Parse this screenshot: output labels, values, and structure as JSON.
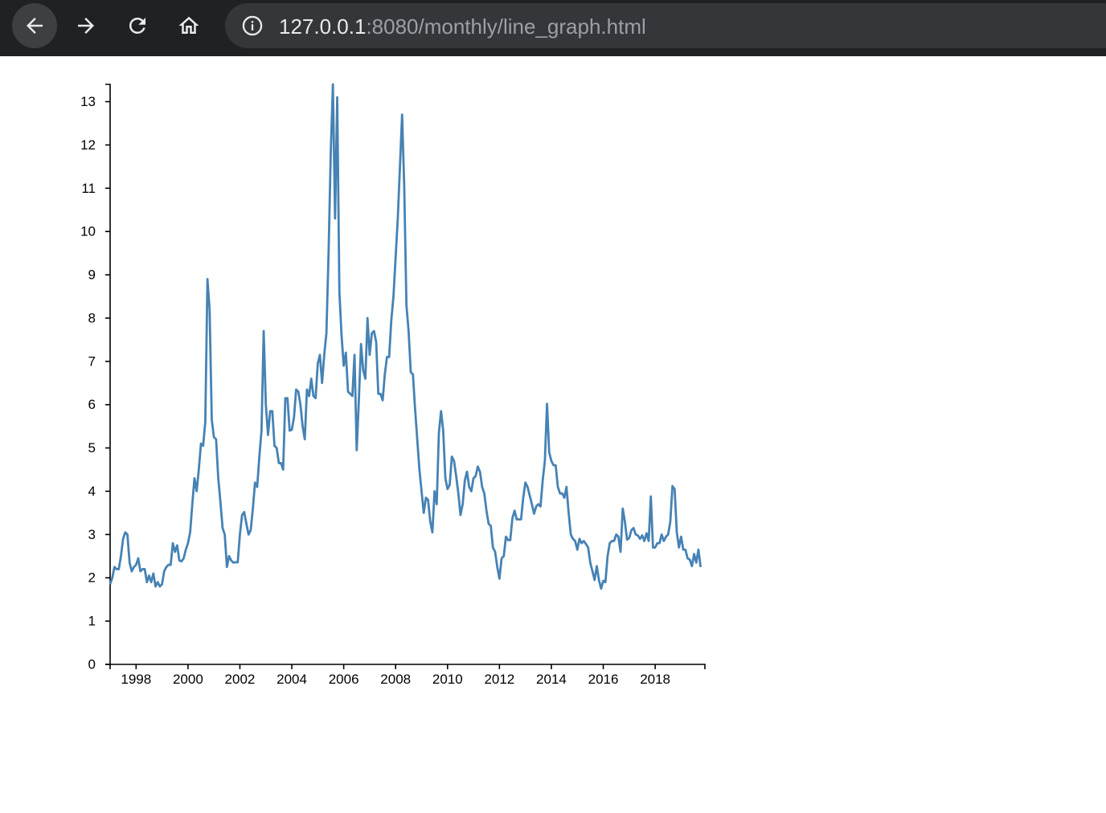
{
  "browser": {
    "url_host": "127.0.0.1",
    "url_path": ":8080/monthly/line_graph.html",
    "icons": [
      "back-arrow-icon",
      "forward-arrow-icon",
      "reload-icon",
      "home-icon",
      "info-icon"
    ]
  },
  "chart_data": {
    "type": "line",
    "title": "",
    "xlabel": "",
    "ylabel": "",
    "xlim": [
      "1997-01",
      "2019-12"
    ],
    "ylim": [
      0,
      13.4
    ],
    "x_ticks": [
      "1998",
      "2000",
      "2002",
      "2004",
      "2006",
      "2008",
      "2010",
      "2012",
      "2014",
      "2016",
      "2018"
    ],
    "y_ticks": [
      "0",
      "1",
      "2",
      "3",
      "4",
      "5",
      "6",
      "7",
      "8",
      "9",
      "10",
      "11",
      "12",
      "13"
    ],
    "grid": false,
    "line_color": "#4682b4",
    "series": [
      {
        "start": "1997-01",
        "frequency": "monthly",
        "values": [
          1.85,
          2.0,
          2.25,
          2.2,
          2.2,
          2.5,
          2.9,
          3.05,
          3.0,
          2.35,
          2.15,
          2.25,
          2.3,
          2.45,
          2.15,
          2.2,
          2.2,
          1.9,
          2.05,
          1.9,
          2.1,
          1.8,
          1.9,
          1.8,
          1.85,
          2.15,
          2.25,
          2.3,
          2.3,
          2.8,
          2.6,
          2.75,
          2.4,
          2.38,
          2.45,
          2.65,
          2.8,
          3.05,
          3.7,
          4.3,
          4.0,
          4.5,
          5.1,
          5.05,
          5.6,
          8.9,
          8.2,
          5.65,
          5.25,
          5.2,
          4.3,
          3.75,
          3.15,
          3.0,
          2.25,
          2.5,
          2.4,
          2.35,
          2.36,
          2.36,
          3.0,
          3.45,
          3.52,
          3.25,
          3.0,
          3.1,
          3.6,
          4.2,
          4.1,
          4.8,
          5.4,
          7.7,
          6.0,
          5.3,
          5.85,
          5.85,
          5.05,
          5.0,
          4.65,
          4.65,
          4.5,
          6.15,
          6.15,
          5.4,
          5.42,
          5.7,
          6.35,
          6.3,
          6.0,
          5.5,
          5.2,
          6.35,
          6.2,
          6.6,
          6.2,
          6.15,
          6.95,
          7.15,
          6.5,
          7.15,
          7.65,
          9.5,
          11.8,
          13.4,
          10.3,
          13.1,
          8.6,
          7.6,
          6.9,
          7.2,
          6.3,
          6.25,
          6.2,
          7.15,
          4.95,
          6.1,
          7.4,
          6.8,
          6.6,
          8.0,
          7.15,
          7.65,
          7.7,
          7.45,
          6.25,
          6.25,
          6.1,
          6.7,
          7.1,
          7.1,
          7.95,
          8.5,
          9.4,
          10.3,
          11.5,
          12.7,
          11.0,
          8.3,
          7.7,
          6.75,
          6.7,
          5.9,
          5.2,
          4.5,
          4.0,
          3.5,
          3.85,
          3.8,
          3.3,
          3.05,
          4.0,
          3.7,
          5.35,
          5.85,
          5.4,
          4.3,
          4.05,
          4.15,
          4.8,
          4.7,
          4.35,
          3.95,
          3.45,
          3.7,
          4.25,
          4.45,
          4.1,
          4.0,
          4.3,
          4.35,
          4.57,
          4.45,
          4.1,
          3.95,
          3.55,
          3.25,
          3.2,
          2.7,
          2.6,
          2.25,
          1.98,
          2.45,
          2.5,
          2.95,
          2.87,
          2.87,
          3.38,
          3.55,
          3.35,
          3.35,
          3.35,
          3.85,
          4.2,
          4.1,
          3.9,
          3.7,
          3.48,
          3.65,
          3.7,
          3.65,
          4.25,
          4.7,
          6.02,
          4.9,
          4.7,
          4.6,
          4.6,
          4.1,
          3.95,
          3.95,
          3.85,
          4.1,
          3.5,
          3.0,
          2.9,
          2.85,
          2.65,
          2.9,
          2.8,
          2.85,
          2.78,
          2.7,
          2.35,
          2.15,
          1.95,
          2.27,
          1.95,
          1.75,
          1.93,
          1.9,
          2.5,
          2.8,
          2.85,
          2.85,
          3.0,
          2.95,
          2.6,
          3.6,
          3.3,
          2.88,
          2.92,
          3.1,
          3.15,
          3.0,
          2.98,
          2.9,
          2.98,
          2.85,
          3.03,
          2.85,
          3.88,
          2.7,
          2.7,
          2.8,
          2.8,
          3.0,
          2.85,
          2.95,
          3.0,
          3.3,
          4.12,
          4.05,
          3.05,
          2.7,
          2.95,
          2.65,
          2.65,
          2.45,
          2.42,
          2.27,
          2.55,
          2.35,
          2.65,
          2.25
        ]
      }
    ]
  }
}
